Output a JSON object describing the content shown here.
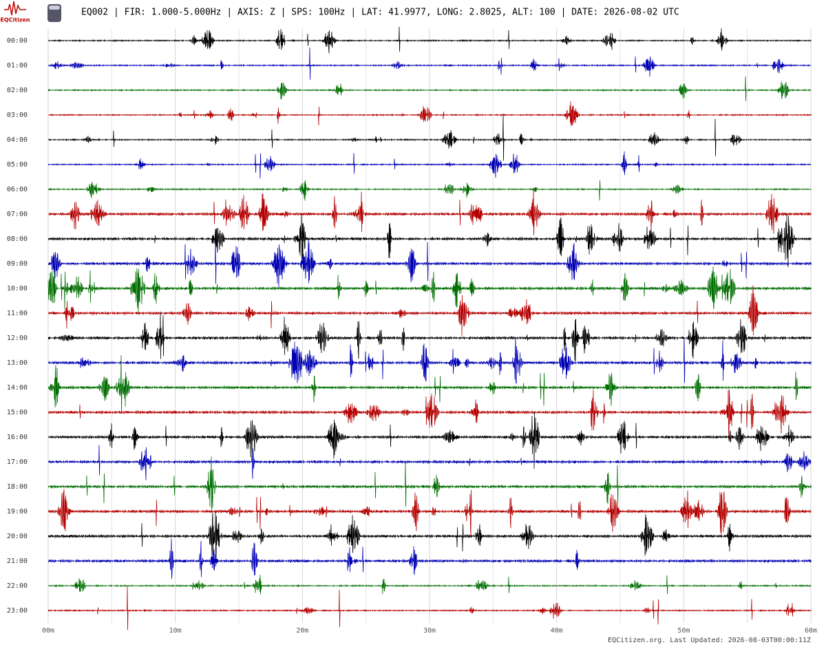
{
  "header": {
    "logo_text": "EQCitizen",
    "title": "EQ002 | FIR: 1.000-5.000Hz | AXIS: Z | SPS: 100Hz | LAT: 41.9977, LONG: 2.8025, ALT: 100 | DATE: 2026-08-02 UTC"
  },
  "rows": [
    "00:00",
    "01:00",
    "02:00",
    "03:00",
    "04:00",
    "05:00",
    "06:00",
    "07:00",
    "08:00",
    "09:00",
    "10:00",
    "11:00",
    "12:00",
    "13:00",
    "14:00",
    "15:00",
    "16:00",
    "17:00",
    "18:00",
    "19:00",
    "20:00",
    "21:00",
    "22:00",
    "23:00"
  ],
  "colors": [
    "#000000",
    "#0000b4",
    "#006e00",
    "#b40000"
  ],
  "xlim": [
    0,
    60
  ],
  "xticks": [
    {
      "value": 0,
      "label": "00m"
    },
    {
      "value": 10,
      "label": "10m"
    },
    {
      "value": 20,
      "label": "20m"
    },
    {
      "value": 30,
      "label": "30m"
    },
    {
      "value": 40,
      "label": "40m"
    },
    {
      "value": 50,
      "label": "50m"
    },
    {
      "value": 60,
      "label": "60m"
    }
  ],
  "minor_xticks": [
    5,
    15,
    25,
    35,
    45,
    55
  ],
  "footer": "EQCitizen.org. Last Updated: 2026-08-03T00:00:11Z"
}
